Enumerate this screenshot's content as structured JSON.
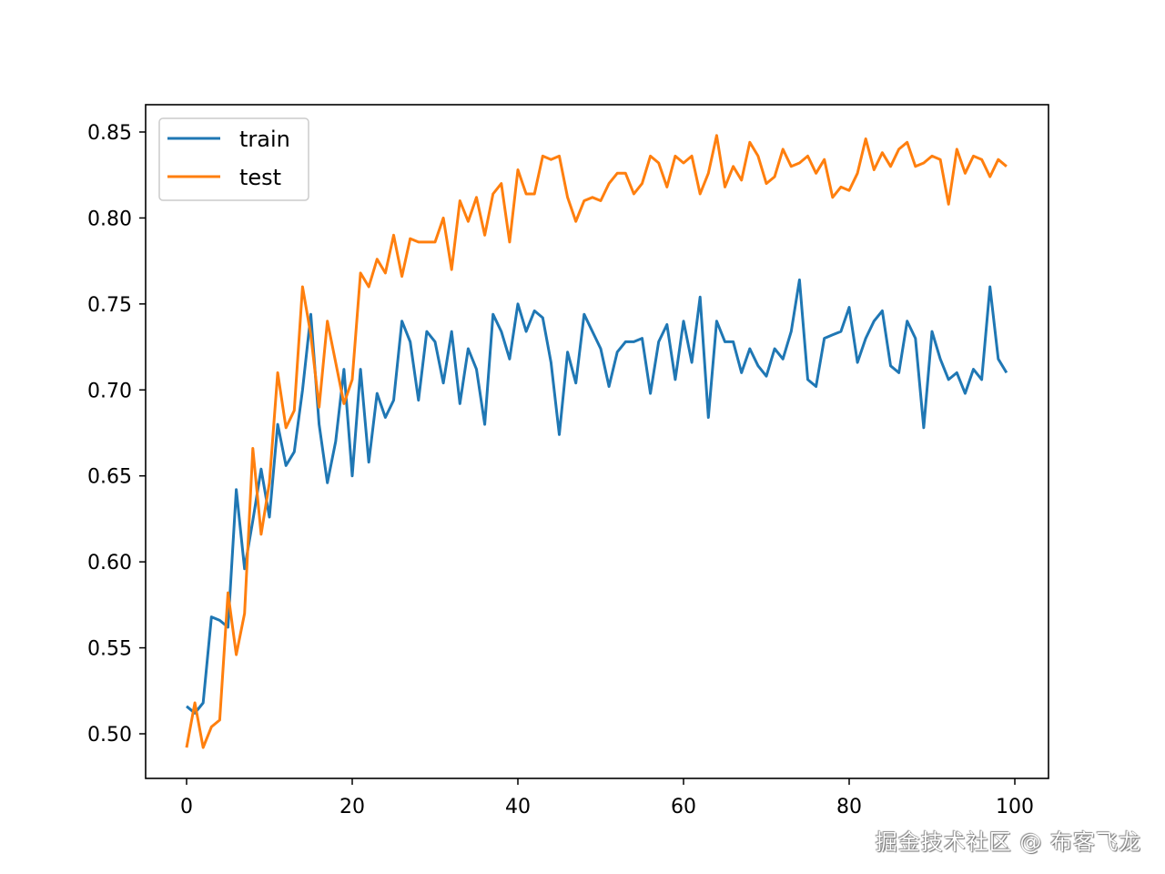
{
  "chart_data": {
    "type": "line",
    "title": "",
    "xlabel": "",
    "ylabel": "",
    "xlim": [
      -5,
      104
    ],
    "ylim": [
      0.474,
      0.866
    ],
    "grid": false,
    "legend_position": "upper left",
    "x_ticks": [
      "0",
      "20",
      "40",
      "60",
      "80",
      "100"
    ],
    "y_ticks": [
      "0.50",
      "0.55",
      "0.60",
      "0.65",
      "0.70",
      "0.75",
      "0.80",
      "0.85"
    ],
    "x": [
      0,
      1,
      2,
      3,
      4,
      5,
      6,
      7,
      8,
      9,
      10,
      11,
      12,
      13,
      14,
      15,
      16,
      17,
      18,
      19,
      20,
      21,
      22,
      23,
      24,
      25,
      26,
      27,
      28,
      29,
      30,
      31,
      32,
      33,
      34,
      35,
      36,
      37,
      38,
      39,
      40,
      41,
      42,
      43,
      44,
      45,
      46,
      47,
      48,
      49,
      50,
      51,
      52,
      53,
      54,
      55,
      56,
      57,
      58,
      59,
      60,
      61,
      62,
      63,
      64,
      65,
      66,
      67,
      68,
      69,
      70,
      71,
      72,
      73,
      74,
      75,
      76,
      77,
      78,
      79,
      80,
      81,
      82,
      83,
      84,
      85,
      86,
      87,
      88,
      89,
      90,
      91,
      92,
      93,
      94,
      95,
      96,
      97,
      98,
      99
    ],
    "series": [
      {
        "name": "train",
        "color": "#1f77b4",
        "values": [
          0.516,
          0.512,
          0.518,
          0.568,
          0.566,
          0.562,
          0.642,
          0.596,
          0.624,
          0.654,
          0.626,
          0.68,
          0.656,
          0.664,
          0.7,
          0.744,
          0.68,
          0.646,
          0.67,
          0.712,
          0.65,
          0.712,
          0.658,
          0.698,
          0.684,
          0.694,
          0.74,
          0.728,
          0.694,
          0.734,
          0.728,
          0.704,
          0.734,
          0.692,
          0.724,
          0.712,
          0.68,
          0.744,
          0.734,
          0.718,
          0.75,
          0.734,
          0.746,
          0.742,
          0.716,
          0.674,
          0.722,
          0.704,
          0.744,
          0.734,
          0.724,
          0.702,
          0.722,
          0.728,
          0.728,
          0.73,
          0.698,
          0.728,
          0.738,
          0.706,
          0.74,
          0.716,
          0.754,
          0.684,
          0.74,
          0.728,
          0.728,
          0.71,
          0.724,
          0.714,
          0.708,
          0.724,
          0.718,
          0.734,
          0.764,
          0.706,
          0.702,
          0.73,
          0.732,
          0.734,
          0.748,
          0.716,
          0.73,
          0.74,
          0.746,
          0.714,
          0.71,
          0.74,
          0.73,
          0.678,
          0.734,
          0.718,
          0.706,
          0.71,
          0.698,
          0.712,
          0.706,
          0.76,
          0.718,
          0.71
        ]
      },
      {
        "name": "test",
        "color": "#ff7f0e",
        "values": [
          0.492,
          0.518,
          0.492,
          0.504,
          0.508,
          0.582,
          0.546,
          0.57,
          0.666,
          0.616,
          0.646,
          0.71,
          0.678,
          0.688,
          0.76,
          0.732,
          0.69,
          0.74,
          0.716,
          0.692,
          0.706,
          0.768,
          0.76,
          0.776,
          0.768,
          0.79,
          0.766,
          0.788,
          0.786,
          0.786,
          0.786,
          0.8,
          0.77,
          0.81,
          0.798,
          0.812,
          0.79,
          0.814,
          0.82,
          0.786,
          0.828,
          0.814,
          0.814,
          0.836,
          0.834,
          0.836,
          0.812,
          0.798,
          0.81,
          0.812,
          0.81,
          0.82,
          0.826,
          0.826,
          0.814,
          0.82,
          0.836,
          0.832,
          0.818,
          0.836,
          0.832,
          0.836,
          0.814,
          0.826,
          0.848,
          0.818,
          0.83,
          0.822,
          0.844,
          0.836,
          0.82,
          0.824,
          0.84,
          0.83,
          0.832,
          0.836,
          0.826,
          0.834,
          0.812,
          0.818,
          0.816,
          0.826,
          0.846,
          0.828,
          0.838,
          0.83,
          0.84,
          0.844,
          0.83,
          0.832,
          0.836,
          0.834,
          0.808,
          0.84,
          0.826,
          0.836,
          0.834,
          0.824,
          0.834,
          0.83
        ]
      }
    ]
  },
  "legend": {
    "items": [
      {
        "label": "train",
        "color": "#1f77b4"
      },
      {
        "label": "test",
        "color": "#ff7f0e"
      }
    ]
  },
  "watermark": "掘金技术社区 @ 布客飞龙"
}
